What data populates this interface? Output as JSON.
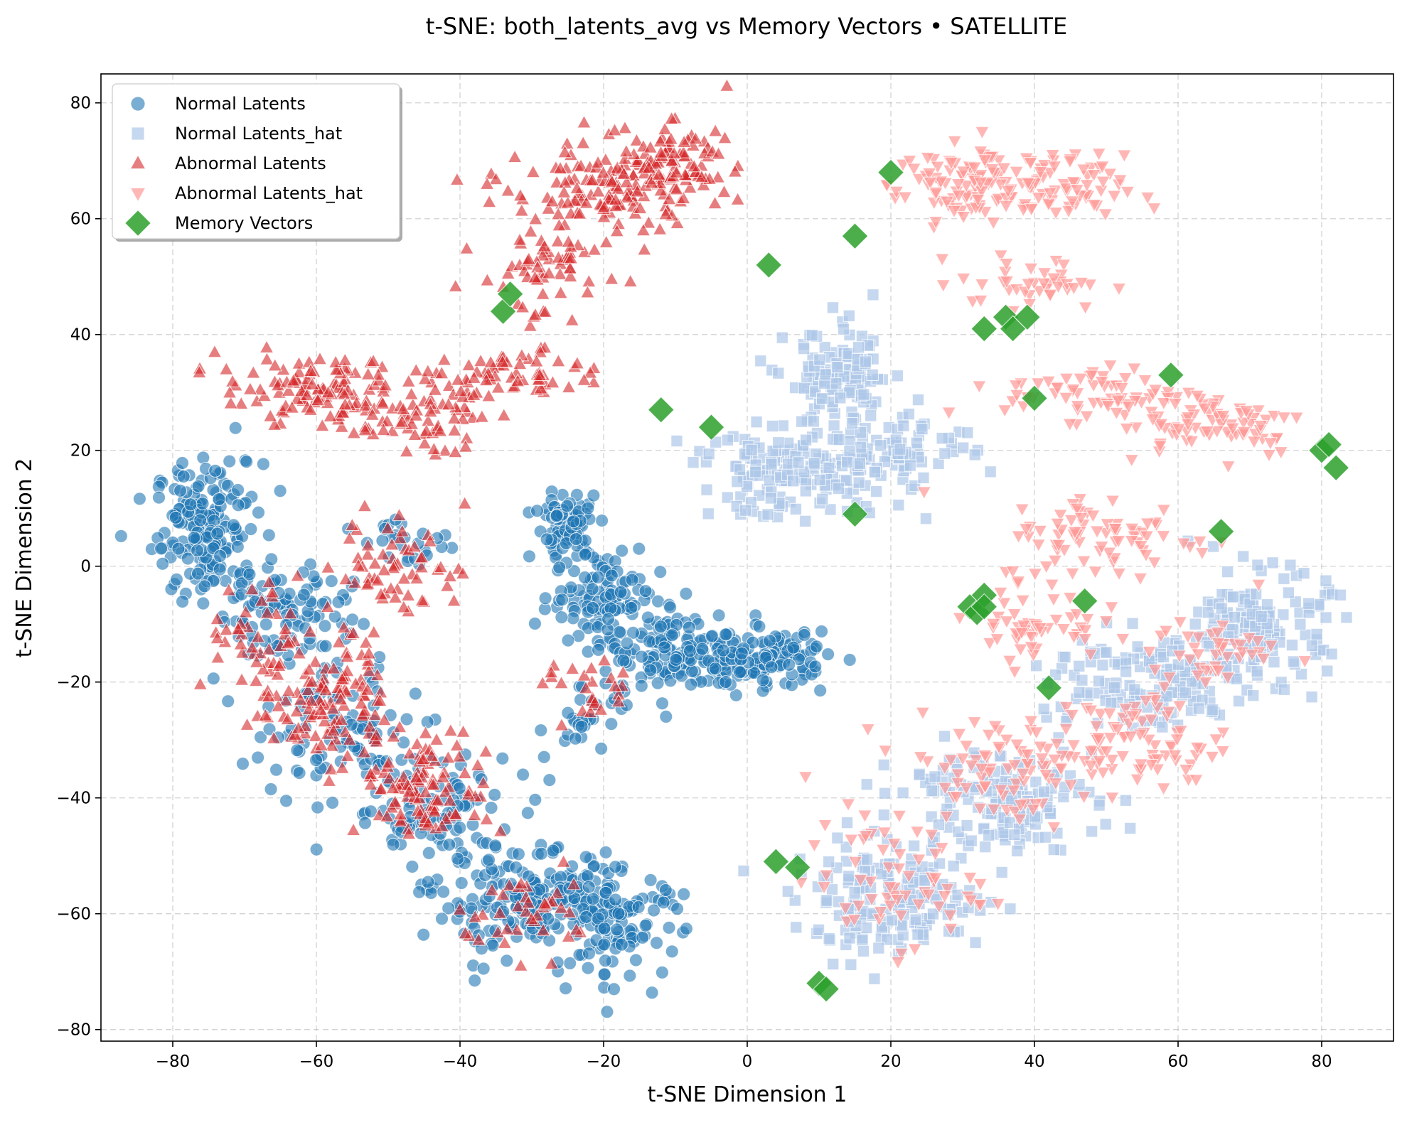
{
  "chart_data": {
    "type": "scatter",
    "title": "t-SNE: both_latents_avg vs Memory Vectors • SATELLITE",
    "xlabel": "t-SNE Dimension 1",
    "ylabel": "t-SNE Dimension 2",
    "xlim": [
      -90,
      90
    ],
    "ylim": [
      -82,
      85
    ],
    "xticks": [
      -80,
      -60,
      -40,
      -20,
      0,
      20,
      40,
      60,
      80
    ],
    "yticks": [
      -80,
      -60,
      -40,
      -20,
      0,
      20,
      40,
      60,
      80
    ],
    "xtick_labels": [
      "−80",
      "−60",
      "−40",
      "−20",
      "0",
      "20",
      "40",
      "60",
      "80"
    ],
    "ytick_labels": [
      "−80",
      "−60",
      "−40",
      "−20",
      "0",
      "20",
      "40",
      "60",
      "80"
    ],
    "grid": true,
    "legend_position": "top-left",
    "series": [
      {
        "name": "Normal Latents",
        "marker": "circle",
        "color": "#1f77b4",
        "opacity": 0.6,
        "clusters": [
          {
            "cx": -75,
            "cy": 6,
            "sx": 5,
            "sy": 8,
            "n": 180
          },
          {
            "cx": -64,
            "cy": -8,
            "sx": 6,
            "sy": 6,
            "n": 90
          },
          {
            "cx": -58,
            "cy": -28,
            "sx": 8,
            "sy": 7,
            "n": 90
          },
          {
            "cx": -45,
            "cy": -42,
            "sx": 8,
            "sy": 7,
            "n": 100
          },
          {
            "cx": -30,
            "cy": -58,
            "sx": 9,
            "sy": 6,
            "n": 200
          },
          {
            "cx": -18,
            "cy": -62,
            "sx": 6,
            "sy": 6,
            "n": 100
          },
          {
            "cx": -25,
            "cy": 7,
            "sx": 3,
            "sy": 4,
            "n": 80
          },
          {
            "cx": -20,
            "cy": -5,
            "sx": 5,
            "sy": 6,
            "n": 110
          },
          {
            "cx": -10,
            "cy": -15,
            "sx": 6,
            "sy": 5,
            "n": 120
          },
          {
            "cx": 2,
            "cy": -16,
            "sx": 6,
            "sy": 3,
            "n": 140
          },
          {
            "cx": -22,
            "cy": -27,
            "sx": 4,
            "sy": 4,
            "n": 30
          },
          {
            "cx": -48,
            "cy": 5,
            "sx": 4,
            "sy": 3,
            "n": 25
          }
        ]
      },
      {
        "name": "Normal Latents_hat",
        "marker": "square",
        "color": "#aec7e8",
        "opacity": 0.7,
        "clusters": [
          {
            "cx": 13,
            "cy": 32,
            "sx": 5,
            "sy": 6,
            "n": 120
          },
          {
            "cx": 7,
            "cy": 16,
            "sx": 10,
            "sy": 5,
            "n": 160
          },
          {
            "cx": 22,
            "cy": 21,
            "sx": 6,
            "sy": 4,
            "n": 70
          },
          {
            "cx": 20,
            "cy": -58,
            "sx": 9,
            "sy": 6,
            "n": 180
          },
          {
            "cx": 35,
            "cy": -40,
            "sx": 9,
            "sy": 6,
            "n": 150
          },
          {
            "cx": 55,
            "cy": -20,
            "sx": 10,
            "sy": 6,
            "n": 150
          },
          {
            "cx": 72,
            "cy": -10,
            "sx": 6,
            "sy": 6,
            "n": 150
          }
        ]
      },
      {
        "name": "Abnormal Latents",
        "marker": "triangle-up",
        "color": "#d62728",
        "opacity": 0.6,
        "clusters": [
          {
            "cx": -20,
            "cy": 65,
            "sx": 9,
            "sy": 6,
            "n": 140
          },
          {
            "cx": -10,
            "cy": 70,
            "sx": 5,
            "sy": 4,
            "n": 80
          },
          {
            "cx": -28,
            "cy": 50,
            "sx": 6,
            "sy": 6,
            "n": 60
          },
          {
            "cx": -60,
            "cy": 30,
            "sx": 9,
            "sy": 4,
            "n": 120
          },
          {
            "cx": -45,
            "cy": 26,
            "sx": 6,
            "sy": 4,
            "n": 60
          },
          {
            "cx": -33,
            "cy": 33,
            "sx": 7,
            "sy": 3,
            "n": 60
          },
          {
            "cx": -48,
            "cy": 0,
            "sx": 6,
            "sy": 6,
            "n": 60
          },
          {
            "cx": -58,
            "cy": -22,
            "sx": 5,
            "sy": 8,
            "n": 110
          },
          {
            "cx": -45,
            "cy": -38,
            "sx": 6,
            "sy": 6,
            "n": 110
          },
          {
            "cx": -30,
            "cy": -60,
            "sx": 7,
            "sy": 5,
            "n": 40
          },
          {
            "cx": -22,
            "cy": -22,
            "sx": 4,
            "sy": 4,
            "n": 25
          },
          {
            "cx": -68,
            "cy": -15,
            "sx": 5,
            "sy": 8,
            "n": 50
          }
        ]
      },
      {
        "name": "Abnormal Latents_hat",
        "marker": "triangle-down",
        "color": "#ff9896",
        "opacity": 0.7,
        "clusters": [
          {
            "cx": 30,
            "cy": 66,
            "sx": 6,
            "sy": 5,
            "n": 90
          },
          {
            "cx": 42,
            "cy": 65,
            "sx": 7,
            "sy": 4,
            "n": 80
          },
          {
            "cx": 40,
            "cy": 49,
            "sx": 7,
            "sy": 3,
            "n": 40
          },
          {
            "cx": 48,
            "cy": 30,
            "sx": 8,
            "sy": 3,
            "n": 60
          },
          {
            "cx": 65,
            "cy": 25,
            "sx": 9,
            "sy": 4,
            "n": 80
          },
          {
            "cx": 50,
            "cy": 5,
            "sx": 10,
            "sy": 5,
            "n": 80
          },
          {
            "cx": 40,
            "cy": -10,
            "sx": 6,
            "sy": 4,
            "n": 50
          },
          {
            "cx": 35,
            "cy": -35,
            "sx": 10,
            "sy": 6,
            "n": 90
          },
          {
            "cx": 55,
            "cy": -30,
            "sx": 8,
            "sy": 6,
            "n": 80
          },
          {
            "cx": 20,
            "cy": -55,
            "sx": 8,
            "sy": 7,
            "n": 60
          },
          {
            "cx": 65,
            "cy": -15,
            "sx": 6,
            "sy": 4,
            "n": 40
          }
        ]
      },
      {
        "name": "Memory Vectors",
        "marker": "diamond",
        "color": "#2ca02c",
        "opacity": 0.85,
        "points": [
          [
            -34,
            44
          ],
          [
            -33,
            47
          ],
          [
            -12,
            27
          ],
          [
            -5,
            24
          ],
          [
            3,
            52
          ],
          [
            15,
            57
          ],
          [
            20,
            68
          ],
          [
            15,
            9
          ],
          [
            33,
            41
          ],
          [
            36,
            43
          ],
          [
            37,
            41
          ],
          [
            39,
            43
          ],
          [
            40,
            29
          ],
          [
            59,
            33
          ],
          [
            66,
            6
          ],
          [
            80,
            20
          ],
          [
            81,
            21
          ],
          [
            82,
            17
          ],
          [
            31,
            -7
          ],
          [
            32,
            -8
          ],
          [
            33,
            -5
          ],
          [
            33,
            -7
          ],
          [
            47,
            -6
          ],
          [
            42,
            -21
          ],
          [
            4,
            -51
          ],
          [
            7,
            -52
          ],
          [
            10,
            -72
          ],
          [
            11,
            -73
          ]
        ]
      }
    ]
  }
}
